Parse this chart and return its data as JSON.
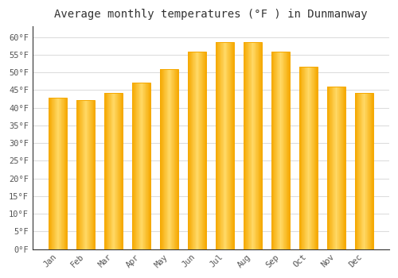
{
  "title": "Average monthly temperatures (°F ) in Dunmanway",
  "months": [
    "Jan",
    "Feb",
    "Mar",
    "Apr",
    "May",
    "Jun",
    "Jul",
    "Aug",
    "Sep",
    "Oct",
    "Nov",
    "Dec"
  ],
  "values": [
    42.8,
    42.1,
    44.2,
    47.0,
    51.0,
    55.9,
    58.6,
    58.6,
    55.9,
    51.6,
    45.9,
    44.1
  ],
  "bar_color_center": "#FFD966",
  "bar_color_edge": "#F5A800",
  "background_color": "#ffffff",
  "plot_bg_color": "#ffffff",
  "ylim": [
    0,
    63
  ],
  "ytick_step": 5,
  "title_fontsize": 10,
  "tick_fontsize": 7.5,
  "grid_color": "#dddddd",
  "axis_color": "#333333"
}
